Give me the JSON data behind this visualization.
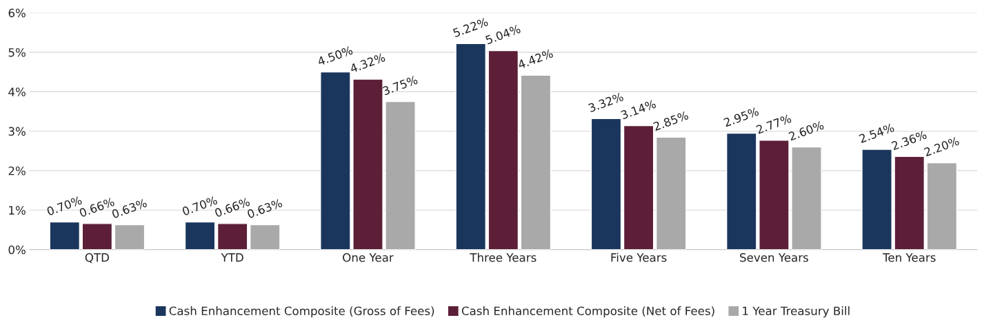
{
  "chart_data": {
    "type": "bar",
    "categories": [
      "QTD",
      "YTD",
      "One Year",
      "Three Years",
      "Five Years",
      "Seven Years",
      "Ten Years"
    ],
    "series": [
      {
        "name": "Cash Enhancement Composite (Gross of Fees)",
        "color": "#1b365d",
        "values": [
          0.7,
          0.7,
          4.5,
          5.22,
          3.32,
          2.95,
          2.54
        ],
        "value_labels": [
          "0.70%",
          "0.70%",
          "4.50%",
          "5.22%",
          "3.32%",
          "2.95%",
          "2.54%"
        ]
      },
      {
        "name": "Cash Enhancement Composite (Net of Fees)",
        "color": "#5c1f37",
        "values": [
          0.66,
          0.66,
          4.32,
          5.04,
          3.14,
          2.77,
          2.36
        ],
        "value_labels": [
          "0.66%",
          "0.66%",
          "4.32%",
          "5.04%",
          "3.14%",
          "2.77%",
          "2.36%"
        ]
      },
      {
        "name": "1 Year Treasury Bill",
        "color": "#a9a9a9",
        "values": [
          0.63,
          0.63,
          3.75,
          4.42,
          2.85,
          2.6,
          2.2
        ],
        "value_labels": [
          "0.63%",
          "0.63%",
          "3.75%",
          "4.42%",
          "2.85%",
          "2.60%",
          "2.20%"
        ]
      }
    ],
    "ylim": [
      0,
      6
    ],
    "yticks": [
      {
        "value": 0,
        "label": "0%"
      },
      {
        "value": 1,
        "label": "1%"
      },
      {
        "value": 2,
        "label": "2%"
      },
      {
        "value": 3,
        "label": "3%"
      },
      {
        "value": 4,
        "label": "4%"
      },
      {
        "value": 5,
        "label": "5%"
      },
      {
        "value": 6,
        "label": "6%"
      }
    ],
    "grid": "y",
    "legend": "bottom"
  }
}
